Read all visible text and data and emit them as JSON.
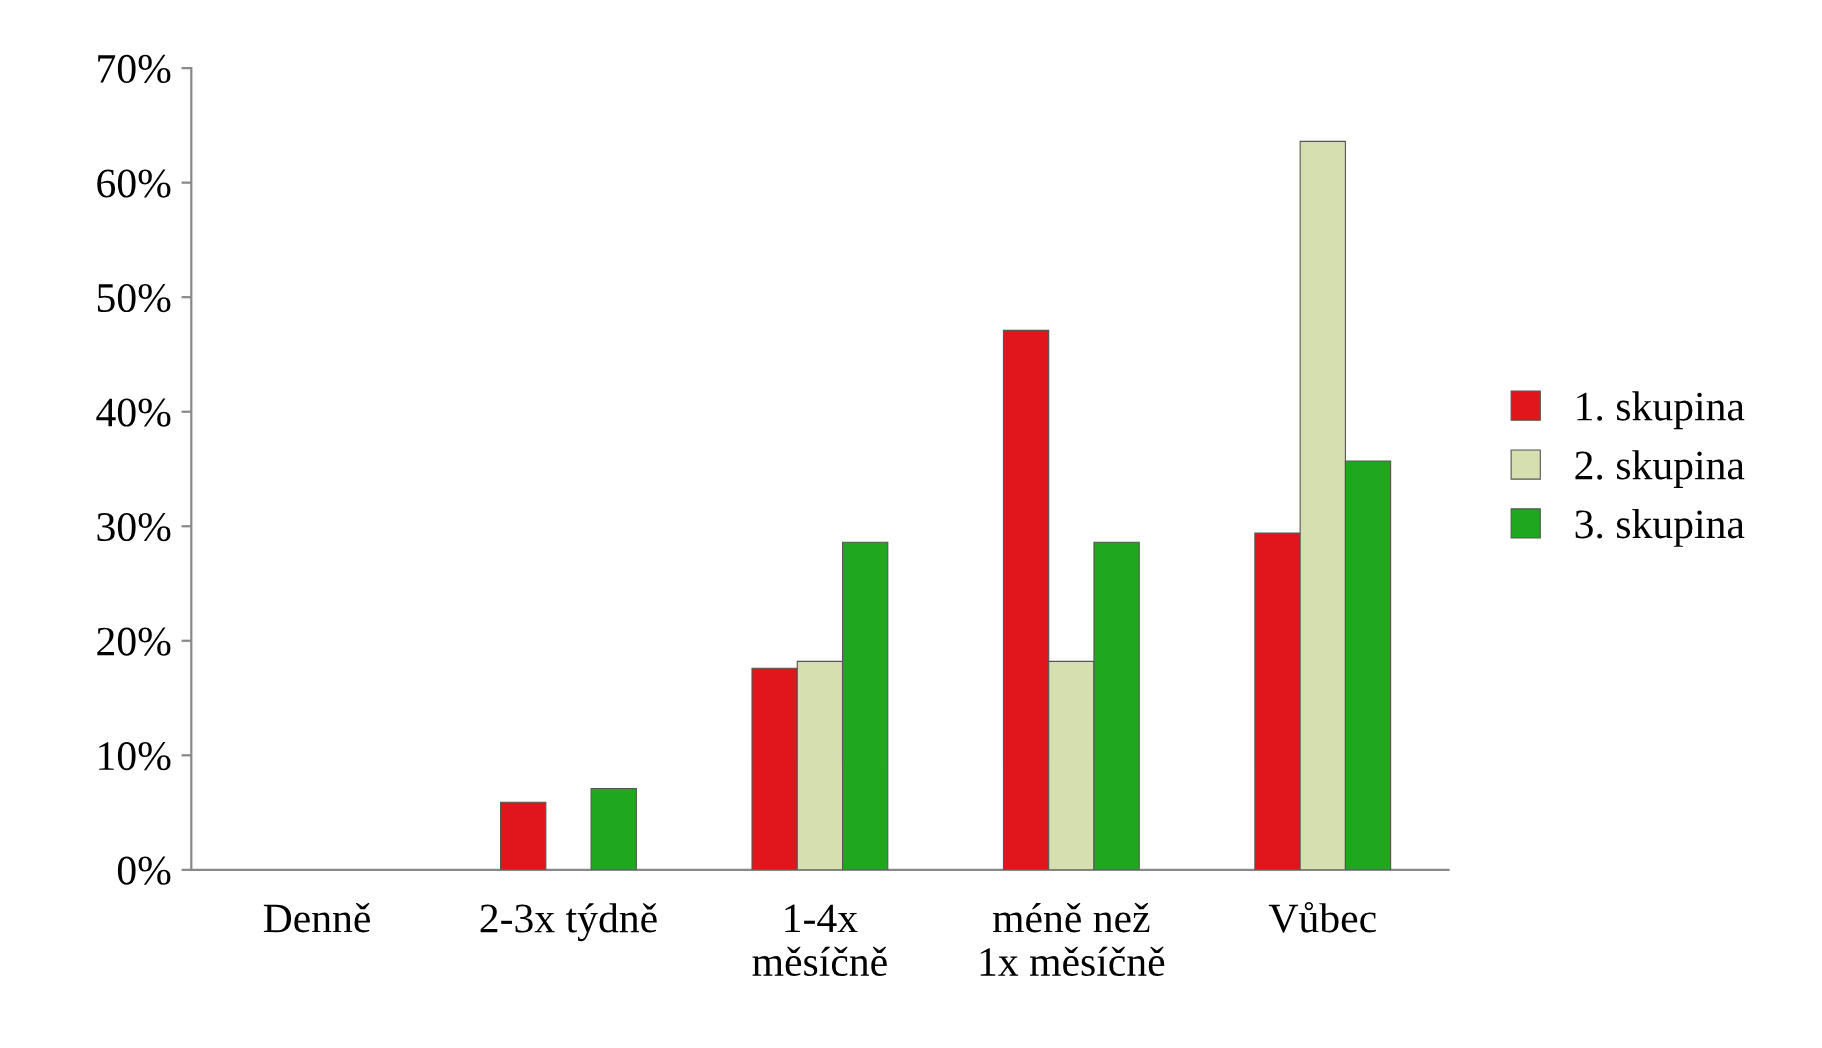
{
  "chart_data": {
    "type": "bar",
    "categories": [
      "Denně",
      "2-3x týdně",
      "1-4x\nměsíčně",
      "méně než\n1x měsíčně",
      "Vůbec"
    ],
    "series": [
      {
        "name": "1. skupina",
        "color": "#e0161b",
        "values": [
          0,
          5.9,
          17.6,
          47.1,
          29.4
        ]
      },
      {
        "name": "2. skupina",
        "color": "#d6dfb0",
        "values": [
          0,
          0,
          18.2,
          18.2,
          63.6
        ]
      },
      {
        "name": "3. skupina",
        "color": "#1fa81f",
        "values": [
          0,
          7.1,
          28.6,
          28.6,
          35.7
        ]
      }
    ],
    "ylim": [
      0,
      70
    ],
    "yticks": [
      {
        "value": 0,
        "label": "0%"
      },
      {
        "value": 10,
        "label": "10%"
      },
      {
        "value": 20,
        "label": "20%"
      },
      {
        "value": 30,
        "label": "30%"
      },
      {
        "value": 40,
        "label": "40%"
      },
      {
        "value": 50,
        "label": "50%"
      },
      {
        "value": 60,
        "label": "60%"
      },
      {
        "value": 70,
        "label": "70%"
      }
    ],
    "legend": "right"
  }
}
